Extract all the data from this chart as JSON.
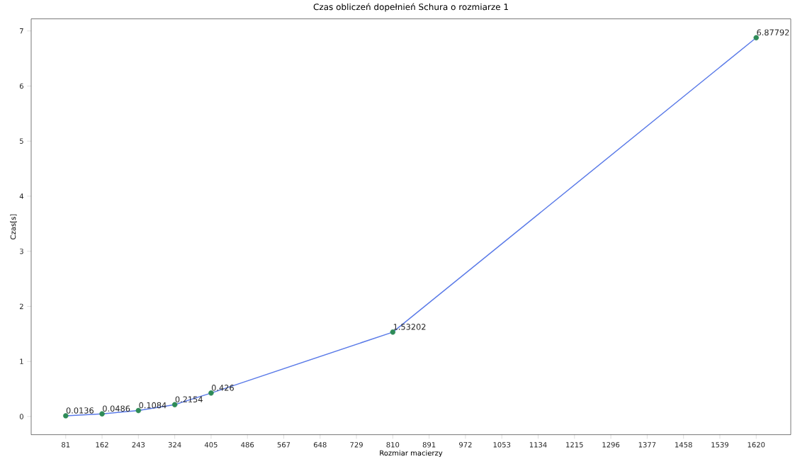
{
  "chart_data": {
    "type": "line",
    "title": "Czas obliczeń dopełnień Schura o rozmiarze 1",
    "xlabel": "Rozmiar macierzy",
    "ylabel": "Czas[s]",
    "x": [
      81,
      162,
      243,
      324,
      405,
      810,
      1620
    ],
    "series": [
      {
        "type": "line",
        "color": "#5b7be8",
        "marker": "none",
        "line_style": "solid",
        "values": [
          0.0136,
          0.0486,
          0.1084,
          0.2154,
          0.426,
          1.53202,
          6.87792
        ]
      },
      {
        "type": "scatter",
        "color": "#2e8b57",
        "marker": "circle",
        "values": [
          0.0136,
          0.0486,
          0.1084,
          0.2154,
          0.426,
          1.53202,
          6.87792
        ],
        "value_labels": [
          "0.0136",
          "0.0486",
          "0.1084",
          "0.2154",
          "0.426",
          "1.53202",
          "6.87792"
        ]
      }
    ],
    "xlim": [
      4,
      1697
    ],
    "ylim": [
      -0.33,
      7.22
    ],
    "xticks": [
      81,
      162,
      243,
      324,
      405,
      486,
      567,
      648,
      729,
      810,
      891,
      972,
      1053,
      1134,
      1215,
      1296,
      1377,
      1458,
      1539,
      1620
    ],
    "yticks": [
      0,
      1,
      2,
      3,
      4,
      5,
      6,
      7
    ],
    "grid": false
  }
}
